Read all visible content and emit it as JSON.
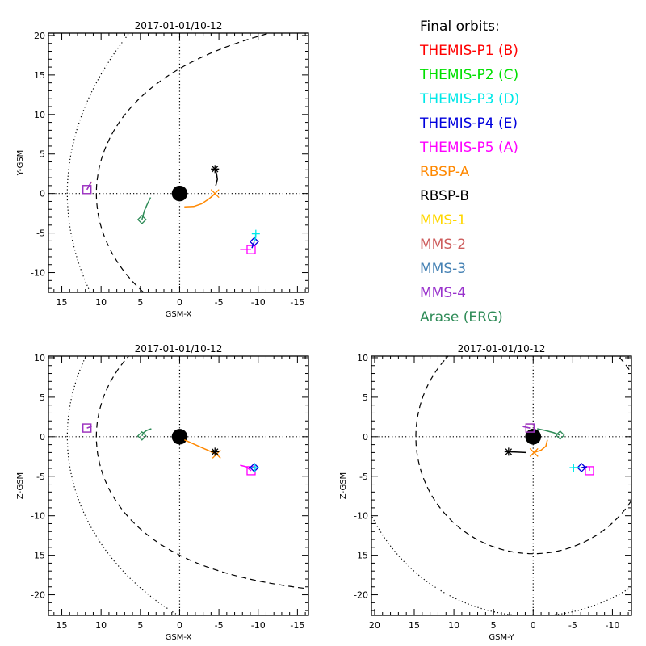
{
  "legend": {
    "title": "Final orbits:",
    "items": [
      {
        "label": "THEMIS-P1 (B)",
        "color": "#ff0000"
      },
      {
        "label": "THEMIS-P2 (C)",
        "color": "#00e000"
      },
      {
        "label": "THEMIS-P3 (D)",
        "color": "#00e8e8"
      },
      {
        "label": "THEMIS-P4 (E)",
        "color": "#0000dd"
      },
      {
        "label": "THEMIS-P5 (A)",
        "color": "#ff00ff"
      },
      {
        "label": "RBSP-A",
        "color": "#ff8800"
      },
      {
        "label": "RBSP-B",
        "color": "#000000"
      },
      {
        "label": "MMS-1",
        "color": "#ffd700"
      },
      {
        "label": "MMS-2",
        "color": "#cd5c5c"
      },
      {
        "label": "MMS-3",
        "color": "#4682b4"
      },
      {
        "label": "MMS-4",
        "color": "#9932cc"
      },
      {
        "label": "Arase (ERG)",
        "color": "#2e8b57"
      }
    ]
  },
  "chart_data": [
    {
      "type": "scatter",
      "id": "xy",
      "title": "2017-01-01/10-12",
      "xlabel": "GSM-X",
      "ylabel": "Y-GSM",
      "xlim": [
        16.7,
        -16.4
      ],
      "ylim": [
        20.3,
        -12.5
      ],
      "xticks": [
        15,
        10,
        5,
        0,
        -5,
        -10,
        -15
      ],
      "yticks": [
        -10,
        -5,
        0,
        5,
        10,
        15,
        20
      ],
      "earth_radius": 1.0,
      "magnetopause": {
        "r0": 10.6,
        "alpha": 0.576
      },
      "bow_shock": {
        "standoff": 14.3,
        "L": 26.96
      },
      "tracks": [
        {
          "name": "THEMIS-P5 (A)",
          "color": "#ff00ff",
          "symbol": "square",
          "points": [
            [
              -7.7,
              -7.1
            ],
            [
              -9.1,
              -7.1
            ]
          ]
        },
        {
          "name": "THEMIS-P4 (E)",
          "color": "#0000dd",
          "symbol": "diamond",
          "points": [
            [
              -9.2,
              -6.9
            ],
            [
              -9.5,
              -6.1
            ]
          ]
        },
        {
          "name": "THEMIS-P3 (D)",
          "color": "#00e8e8",
          "symbol": "plus",
          "points": [
            [
              -9.6,
              -6.0
            ],
            [
              -9.7,
              -5.1
            ]
          ]
        },
        {
          "name": "RBSP-A",
          "color": "#ff8800",
          "symbol": "x",
          "points": [
            [
              -0.6,
              -1.7
            ],
            [
              -1.8,
              -1.65
            ],
            [
              -2.8,
              -1.3
            ],
            [
              -3.7,
              -0.7
            ],
            [
              -4.5,
              0.0
            ]
          ]
        },
        {
          "name": "RBSP-B",
          "color": "#000000",
          "symbol": "asterisk",
          "points": [
            [
              -4.6,
              1.0
            ],
            [
              -4.8,
              1.8
            ],
            [
              -4.7,
              2.5
            ],
            [
              -4.5,
              3.1
            ]
          ]
        },
        {
          "name": "Arase (ERG)",
          "color": "#2e8b57",
          "symbol": "diamond",
          "points": [
            [
              3.7,
              -0.5
            ],
            [
              4.1,
              -1.3
            ],
            [
              4.5,
              -2.2
            ],
            [
              4.8,
              -3.3
            ]
          ]
        },
        {
          "name": "MMS-2",
          "color": "#cd5c5c",
          "symbol": "square",
          "points": [
            [
              11.2,
              1.5
            ],
            [
              11.8,
              0.5
            ]
          ]
        },
        {
          "name": "MMS-4",
          "color": "#9932cc",
          "symbol": "square",
          "points": [
            [
              11.3,
              1.4
            ],
            [
              11.8,
              0.5
            ]
          ]
        }
      ]
    },
    {
      "type": "scatter",
      "id": "xz",
      "title": "2017-01-01/10-12",
      "xlabel": "GSM-X",
      "ylabel": "Z-GSM",
      "xlim": [
        16.7,
        -16.4
      ],
      "ylim": [
        10.2,
        -22.6
      ],
      "xticks": [
        15,
        10,
        5,
        0,
        -5,
        -10,
        -15
      ],
      "yticks": [
        10,
        5,
        0,
        -5,
        -10,
        -15,
        -20
      ],
      "earth_radius": 1.0,
      "magnetopause": {
        "r0": 10.6,
        "alpha": 0.5
      },
      "bow_shock": {
        "standoff": 14.3,
        "L": 22.7
      },
      "tracks": [
        {
          "name": "THEMIS-P5 (A)",
          "color": "#ff00ff",
          "symbol": "square",
          "points": [
            [
              -7.7,
              -3.6
            ],
            [
              -8.5,
              -3.8
            ],
            [
              -9.1,
              -4.3
            ]
          ]
        },
        {
          "name": "THEMIS-P4 (E)",
          "color": "#0000dd",
          "symbol": "diamond",
          "points": [
            [
              -8.8,
              -3.9
            ],
            [
              -9.5,
              -3.9
            ]
          ]
        },
        {
          "name": "THEMIS-P3 (D)",
          "color": "#00e8e8",
          "symbol": "plus",
          "points": [
            [
              -9.4,
              -3.8
            ],
            [
              -9.6,
              -3.9
            ]
          ]
        },
        {
          "name": "RBSP-A",
          "color": "#ff8800",
          "symbol": "x",
          "points": [
            [
              -0.6,
              -0.4
            ],
            [
              -4.7,
              -2.2
            ]
          ]
        },
        {
          "name": "RBSP-B",
          "color": "#000000",
          "symbol": "asterisk",
          "points": [
            [
              -4.5,
              -1.9
            ]
          ]
        },
        {
          "name": "Arase (ERG)",
          "color": "#2e8b57",
          "symbol": "diamond",
          "points": [
            [
              3.6,
              1.0
            ],
            [
              4.2,
              0.8
            ],
            [
              4.6,
              0.5
            ],
            [
              4.8,
              0.1
            ]
          ]
        },
        {
          "name": "MMS-2",
          "color": "#cd5c5c",
          "symbol": "square",
          "points": [
            [
              11.2,
              1.3
            ],
            [
              11.8,
              1.1
            ]
          ]
        },
        {
          "name": "MMS-4",
          "color": "#9932cc",
          "symbol": "square",
          "points": [
            [
              11.2,
              1.3
            ],
            [
              11.8,
              1.1
            ]
          ]
        }
      ]
    },
    {
      "type": "scatter",
      "id": "yz",
      "title": "2017-01-01/10-12",
      "xlabel": "GSM-Y",
      "ylabel": "Z-GSM",
      "xlim": [
        20.4,
        -12.4
      ],
      "ylim": [
        10.2,
        -22.6
      ],
      "xticks": [
        20,
        15,
        10,
        5,
        0,
        -5,
        -10
      ],
      "yticks": [
        10,
        5,
        0,
        -5,
        -10,
        -15,
        -20
      ],
      "earth_radius": 1.0,
      "magnetopause_radius": 14.8,
      "bow_shock_radius": 22.7,
      "tracks": [
        {
          "name": "THEMIS-P5 (A)",
          "color": "#ff00ff",
          "symbol": "square",
          "points": [
            [
              -7.1,
              -3.8
            ],
            [
              -7.1,
              -4.3
            ]
          ]
        },
        {
          "name": "THEMIS-P4 (E)",
          "color": "#0000dd",
          "symbol": "diamond",
          "points": [
            [
              -6.8,
              -3.8
            ],
            [
              -6.1,
              -3.9
            ]
          ]
        },
        {
          "name": "THEMIS-P3 (D)",
          "color": "#00e8e8",
          "symbol": "plus",
          "points": [
            [
              -5.9,
              -3.9
            ],
            [
              -5.1,
              -3.9
            ]
          ]
        },
        {
          "name": "RBSP-A",
          "color": "#ff8800",
          "symbol": "x",
          "points": [
            [
              -1.8,
              -0.4
            ],
            [
              -1.6,
              -1.2
            ],
            [
              -1.0,
              -1.7
            ],
            [
              -0.1,
              -2.0
            ]
          ]
        },
        {
          "name": "RBSP-B",
          "color": "#000000",
          "symbol": "asterisk",
          "points": [
            [
              0.9,
              -2.0
            ],
            [
              3.1,
              -1.9
            ]
          ]
        },
        {
          "name": "Arase (ERG)",
          "color": "#2e8b57",
          "symbol": "diamond",
          "points": [
            [
              -0.5,
              1.0
            ],
            [
              -1.5,
              0.8
            ],
            [
              -2.6,
              0.5
            ],
            [
              -3.4,
              0.2
            ]
          ]
        },
        {
          "name": "MMS-2",
          "color": "#cd5c5c",
          "symbol": "square",
          "points": [
            [
              1.3,
              1.3
            ],
            [
              0.4,
              1.1
            ]
          ]
        },
        {
          "name": "MMS-4",
          "color": "#9932cc",
          "symbol": "square",
          "points": [
            [
              1.3,
              1.3
            ],
            [
              0.4,
              1.1
            ]
          ]
        }
      ]
    }
  ]
}
